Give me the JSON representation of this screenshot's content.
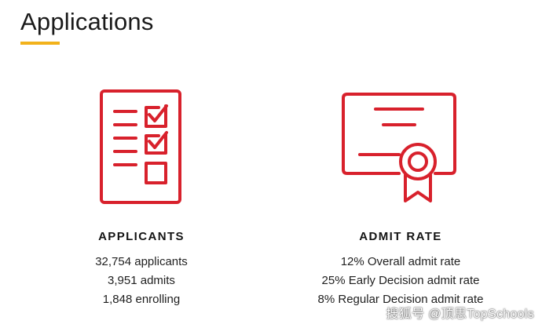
{
  "header": {
    "title": "Applications",
    "accent_color": "#f2b21b"
  },
  "applicants": {
    "heading": "APPLICANTS",
    "icon": "checklist-icon",
    "lines": [
      "32,754 applicants",
      "3,951 admits",
      "1,848 enrolling"
    ]
  },
  "admit_rate": {
    "heading": "ADMIT RATE",
    "icon": "certificate-icon",
    "lines": [
      "12% Overall admit rate",
      "25% Early Decision admit rate",
      "8% Regular Decision admit rate"
    ]
  },
  "watermark": "搜狐号 @顶思TopSchools",
  "icon_color": "#d8212c"
}
